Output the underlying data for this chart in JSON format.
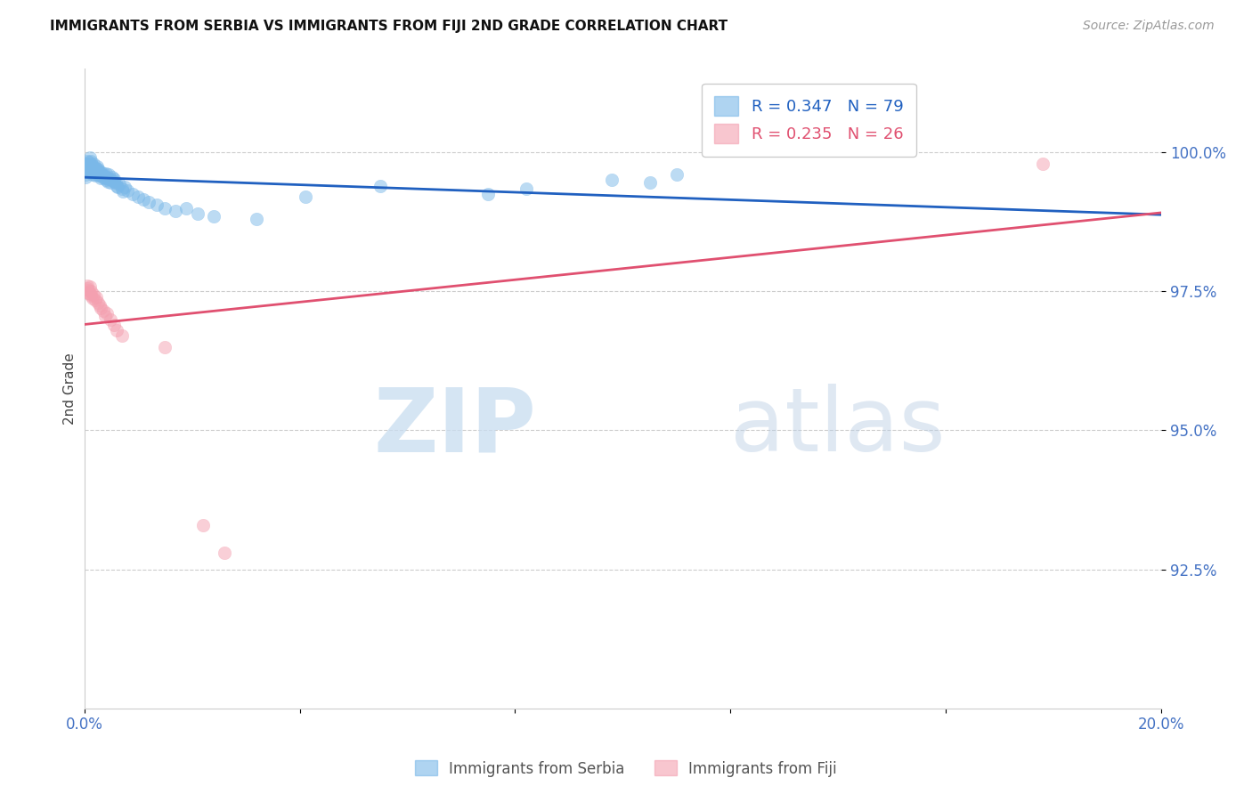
{
  "title": "IMMIGRANTS FROM SERBIA VS IMMIGRANTS FROM FIJI 2ND GRADE CORRELATION CHART",
  "source": "Source: ZipAtlas.com",
  "ylabel": "2nd Grade",
  "xlim": [
    0.0,
    20.0
  ],
  "ylim": [
    90.0,
    101.5
  ],
  "yticks": [
    92.5,
    95.0,
    97.5,
    100.0
  ],
  "ytick_labels": [
    "92.5%",
    "95.0%",
    "97.5%",
    "100.0%"
  ],
  "xticks": [
    0.0,
    4.0,
    8.0,
    12.0,
    16.0,
    20.0
  ],
  "xtick_labels": [
    "0.0%",
    "",
    "",
    "",
    "",
    "20.0%"
  ],
  "serbia_color": "#7ab8e8",
  "fiji_color": "#f4a0b0",
  "serbia_line_color": "#2060c0",
  "fiji_line_color": "#e05070",
  "serbia_R": 0.347,
  "serbia_N": 79,
  "fiji_R": 0.235,
  "fiji_N": 26,
  "legend_serbia_label": "R = 0.347   N = 79",
  "legend_fiji_label": "R = 0.235   N = 26",
  "watermark_zip": "ZIP",
  "watermark_atlas": "atlas",
  "background_color": "#ffffff",
  "grid_color": "#cccccc",
  "tick_label_color": "#4472c4",
  "serbia_label": "Immigrants from Serbia",
  "fiji_label": "Immigrants from Fiji",
  "serbia_x": [
    0.02,
    0.03,
    0.03,
    0.04,
    0.04,
    0.05,
    0.05,
    0.06,
    0.07,
    0.08,
    0.09,
    0.1,
    0.1,
    0.11,
    0.12,
    0.12,
    0.13,
    0.14,
    0.15,
    0.15,
    0.16,
    0.17,
    0.18,
    0.18,
    0.19,
    0.2,
    0.21,
    0.22,
    0.23,
    0.24,
    0.25,
    0.25,
    0.26,
    0.28,
    0.29,
    0.3,
    0.3,
    0.32,
    0.33,
    0.35,
    0.36,
    0.38,
    0.4,
    0.4,
    0.42,
    0.44,
    0.45,
    0.46,
    0.48,
    0.5,
    0.52,
    0.55,
    0.55,
    0.58,
    0.6,
    0.62,
    0.65,
    0.7,
    0.72,
    0.75,
    0.8,
    0.9,
    1.0,
    1.1,
    1.2,
    1.35,
    1.5,
    1.7,
    1.9,
    2.1,
    2.4,
    3.2,
    4.1,
    5.5,
    7.5,
    8.2,
    9.8,
    10.5,
    11.0
  ],
  "serbia_y": [
    99.6,
    99.55,
    99.7,
    99.65,
    99.75,
    99.8,
    99.85,
    99.78,
    99.72,
    99.68,
    99.82,
    99.75,
    99.9,
    99.7,
    99.65,
    99.85,
    99.72,
    99.78,
    99.68,
    99.6,
    99.74,
    99.66,
    99.7,
    99.8,
    99.62,
    99.58,
    99.64,
    99.72,
    99.68,
    99.74,
    99.6,
    99.7,
    99.66,
    99.62,
    99.58,
    99.54,
    99.65,
    99.6,
    99.55,
    99.62,
    99.58,
    99.54,
    99.5,
    99.62,
    99.55,
    99.48,
    99.52,
    99.6,
    99.45,
    99.5,
    99.55,
    99.48,
    99.52,
    99.45,
    99.4,
    99.38,
    99.42,
    99.35,
    99.3,
    99.38,
    99.32,
    99.25,
    99.2,
    99.15,
    99.1,
    99.05,
    99.0,
    98.95,
    99.0,
    98.9,
    98.85,
    98.8,
    99.2,
    99.4,
    99.25,
    99.35,
    99.5,
    99.45,
    99.6
  ],
  "fiji_x": [
    0.05,
    0.06,
    0.07,
    0.08,
    0.1,
    0.1,
    0.12,
    0.13,
    0.15,
    0.18,
    0.2,
    0.22,
    0.25,
    0.28,
    0.3,
    0.35,
    0.38,
    0.42,
    0.48,
    0.55,
    0.6,
    0.7,
    1.5,
    2.2,
    2.6,
    17.8
  ],
  "fiji_y": [
    97.6,
    97.55,
    97.48,
    97.52,
    97.45,
    97.58,
    97.42,
    97.5,
    97.38,
    97.44,
    97.35,
    97.4,
    97.3,
    97.25,
    97.2,
    97.15,
    97.05,
    97.1,
    97.0,
    96.9,
    96.8,
    96.7,
    96.5,
    93.3,
    92.8,
    99.8
  ]
}
